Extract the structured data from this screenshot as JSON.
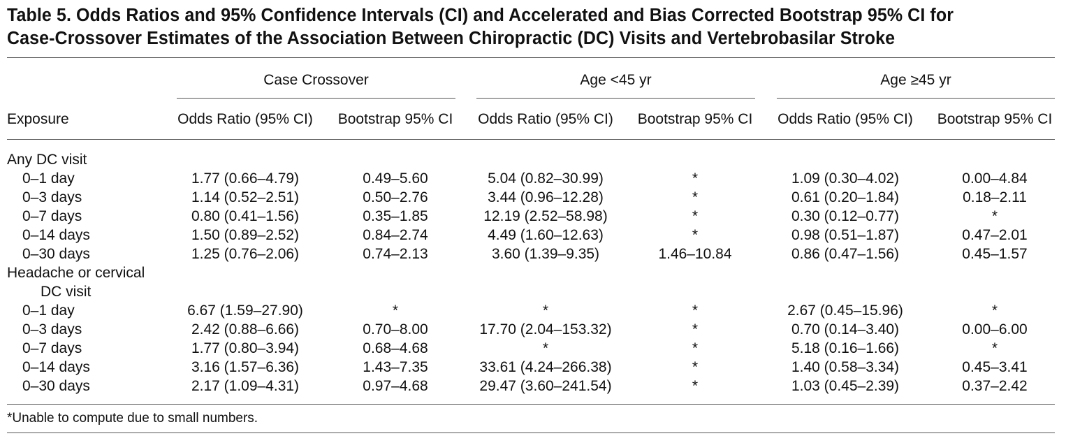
{
  "title": {
    "line1": "Table 5. Odds Ratios and 95% Confidence Intervals (CI) and Accelerated and Bias Corrected Bootstrap 95% CI for",
    "line2": "Case-Crossover Estimates of the Association Between Chiropractic (DC) Visits and Vertebrobasilar Stroke"
  },
  "groups": [
    "Case Crossover",
    "Age <45 yr",
    "Age ≥45 yr"
  ],
  "columns": [
    "Exposure",
    "Odds Ratio (95% CI)",
    "Bootstrap 95% CI",
    "Odds Ratio (95% CI)",
    "Bootstrap 95% CI",
    "Odds Ratio (95% CI)",
    "Bootstrap 95% CI"
  ],
  "sections": [
    {
      "heading": [
        "Any DC visit"
      ],
      "rows": [
        [
          "0–1 day",
          "1.77 (0.66–4.79)",
          "0.49–5.60",
          "5.04 (0.82–30.99)",
          "*",
          "1.09 (0.30–4.02)",
          "0.00–4.84"
        ],
        [
          "0–3 days",
          "1.14 (0.52–2.51)",
          "0.50–2.76",
          "3.44 (0.96–12.28)",
          "*",
          "0.61 (0.20–1.84)",
          "0.18–2.11"
        ],
        [
          "0–7 days",
          "0.80 (0.41–1.56)",
          "0.35–1.85",
          "12.19 (2.52–58.98)",
          "*",
          "0.30 (0.12–0.77)",
          "*"
        ],
        [
          "0–14 days",
          "1.50 (0.89–2.52)",
          "0.84–2.74",
          "4.49 (1.60–12.63)",
          "*",
          "0.98 (0.51–1.87)",
          "0.47–2.01"
        ],
        [
          "0–30 days",
          "1.25 (0.76–2.06)",
          "0.74–2.13",
          "3.60 (1.39–9.35)",
          "1.46–10.84",
          "0.86 (0.47–1.56)",
          "0.45–1.57"
        ]
      ]
    },
    {
      "heading": [
        "Headache or cervical",
        "DC visit"
      ],
      "rows": [
        [
          "0–1 day",
          "6.67 (1.59–27.90)",
          "*",
          "*",
          "*",
          "2.67 (0.45–15.96)",
          "*"
        ],
        [
          "0–3 days",
          "2.42 (0.88–6.66)",
          "0.70–8.00",
          "17.70 (2.04–153.32)",
          "*",
          "0.70 (0.14–3.40)",
          "0.00–6.00"
        ],
        [
          "0–7 days",
          "1.77 (0.80–3.94)",
          "0.68–4.68",
          "*",
          "*",
          "5.18 (0.16–1.66)",
          "*"
        ],
        [
          "0–14 days",
          "3.16 (1.57–6.36)",
          "1.43–7.35",
          "33.61 (4.24–266.38)",
          "*",
          "1.40 (0.58–3.34)",
          "0.45–3.41"
        ],
        [
          "0–30 days",
          "2.17 (1.09–4.31)",
          "0.97–4.68",
          "29.47 (3.60–241.54)",
          "*",
          "1.03 (0.45–2.39)",
          "0.37–2.42"
        ]
      ]
    }
  ],
  "footnote": "*Unable to compute due to small numbers."
}
